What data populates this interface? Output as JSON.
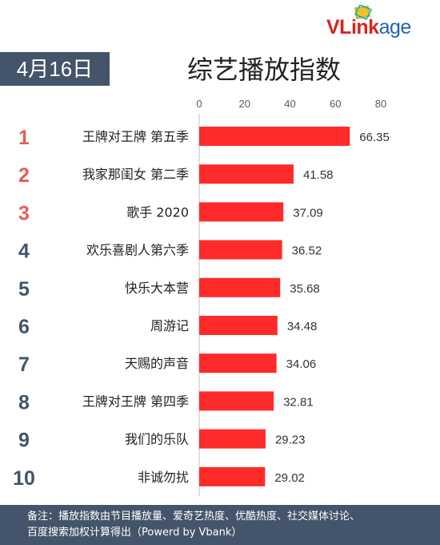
{
  "header": {
    "date": "4月16日",
    "logo": "VLinkage"
  },
  "chart_data": {
    "type": "bar",
    "orientation": "horizontal",
    "title": "综艺播放指数",
    "ranks": [
      "1",
      "2",
      "3",
      "4",
      "5",
      "6",
      "7",
      "8",
      "9",
      "10"
    ],
    "categories": [
      "王牌对王牌 第五季",
      "我家那闺女 第二季",
      "歌手 2020",
      "欢乐喜剧人第六季",
      "快乐大本营",
      "周游记",
      "天赐的声音",
      "王牌对王牌 第四季",
      "我们的乐队",
      "非诚勿扰"
    ],
    "values": [
      66.35,
      41.58,
      37.09,
      36.52,
      35.68,
      34.48,
      34.06,
      32.81,
      29.23,
      29.02
    ],
    "value_labels": [
      "66.35",
      "41.58",
      "37.09",
      "36.52",
      "35.68",
      "34.48",
      "34.06",
      "32.81",
      "29.23",
      "29.02"
    ],
    "xticks": [
      "0",
      "20",
      "40",
      "60",
      "80"
    ],
    "xlim": [
      0,
      80
    ],
    "axis_position": "top",
    "grid": false,
    "colors": {
      "bar": "#ff2a2a",
      "rank_top3": "#e85a5a",
      "rank_other": "#44546a",
      "axis": "#bfbfbf"
    }
  },
  "footer": {
    "line1": "备注：播放指数由节目播放量、爱奇艺热度、优酷热度、社交媒体讨论、",
    "line2": "百度搜索加权计算得出（Powerd by Vbank）"
  }
}
